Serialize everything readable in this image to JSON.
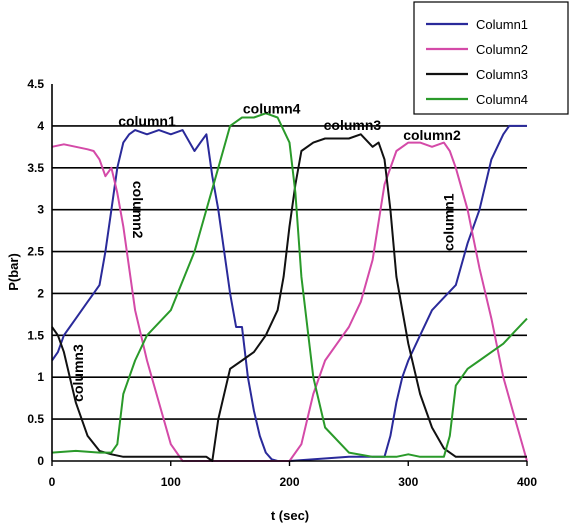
{
  "chart_data": {
    "type": "line",
    "title": "",
    "xlabel": "t (sec)",
    "ylabel": "P(bar)",
    "xlim": [
      0,
      400
    ],
    "ylim": [
      0,
      4.5
    ],
    "x_ticks": [
      "0",
      "100",
      "200",
      "300",
      "400"
    ],
    "y_ticks": [
      "0",
      "0.5",
      "1",
      "1.5",
      "2",
      "2.5",
      "3",
      "3.5",
      "4",
      "4.5"
    ],
    "grid": "horizontal",
    "legend_position": "top-right",
    "colors": {
      "Column1": "#2a2a9a",
      "Column2": "#d44aa8",
      "Column3": "#111111",
      "Column4": "#2a9a2a"
    },
    "series": [
      {
        "name": "Column1",
        "x": [
          0,
          5,
          10,
          15,
          20,
          25,
          30,
          35,
          40,
          45,
          50,
          55,
          60,
          65,
          70,
          80,
          90,
          100,
          110,
          120,
          125,
          130,
          135,
          140,
          145,
          150,
          155,
          160,
          165,
          170,
          175,
          180,
          185,
          190,
          200,
          250,
          270,
          280,
          285,
          290,
          295,
          300,
          310,
          320,
          330,
          340,
          350,
          360,
          370,
          380,
          385,
          390,
          400
        ],
        "y": [
          1.2,
          1.3,
          1.5,
          1.6,
          1.7,
          1.8,
          1.9,
          2.0,
          2.1,
          2.5,
          3.0,
          3.5,
          3.8,
          3.9,
          3.95,
          3.9,
          3.95,
          3.9,
          3.95,
          3.7,
          3.8,
          3.9,
          3.4,
          3.0,
          2.5,
          2.0,
          1.6,
          1.6,
          1.0,
          0.6,
          0.3,
          0.1,
          0.02,
          0.0,
          0.0,
          0.05,
          0.05,
          0.05,
          0.3,
          0.7,
          1.0,
          1.2,
          1.5,
          1.8,
          1.95,
          2.1,
          2.6,
          3.0,
          3.6,
          3.9,
          4.0,
          4.0,
          4.0
        ]
      },
      {
        "name": "Column2",
        "x": [
          0,
          10,
          20,
          30,
          35,
          40,
          45,
          50,
          55,
          60,
          65,
          70,
          80,
          90,
          100,
          110,
          200,
          210,
          215,
          220,
          230,
          240,
          250,
          260,
          270,
          280,
          290,
          300,
          310,
          320,
          330,
          335,
          340,
          350,
          360,
          370,
          380,
          390,
          400
        ],
        "y": [
          3.75,
          3.78,
          3.75,
          3.72,
          3.7,
          3.6,
          3.4,
          3.5,
          3.2,
          2.8,
          2.3,
          1.8,
          1.2,
          0.7,
          0.2,
          0.0,
          0.0,
          0.2,
          0.5,
          0.8,
          1.2,
          1.4,
          1.6,
          1.9,
          2.4,
          3.3,
          3.7,
          3.8,
          3.8,
          3.75,
          3.8,
          3.7,
          3.5,
          3.0,
          2.3,
          1.7,
          1.0,
          0.5,
          0.0
        ]
      },
      {
        "name": "Column3",
        "x": [
          0,
          5,
          10,
          15,
          20,
          30,
          40,
          50,
          60,
          100,
          120,
          125,
          130,
          135,
          140,
          150,
          160,
          170,
          180,
          190,
          195,
          200,
          205,
          210,
          220,
          230,
          240,
          250,
          260,
          270,
          275,
          280,
          285,
          290,
          295,
          300,
          310,
          320,
          330,
          340,
          350,
          360,
          400
        ],
        "y": [
          1.6,
          1.5,
          1.3,
          1.0,
          0.7,
          0.3,
          0.12,
          0.08,
          0.05,
          0.05,
          0.05,
          0.05,
          0.05,
          0.0,
          0.5,
          1.1,
          1.2,
          1.3,
          1.5,
          1.8,
          2.2,
          2.8,
          3.3,
          3.7,
          3.8,
          3.85,
          3.85,
          3.85,
          3.9,
          3.75,
          3.8,
          3.6,
          3.0,
          2.2,
          1.8,
          1.4,
          0.8,
          0.4,
          0.15,
          0.05,
          0.05,
          0.05,
          0.05
        ]
      },
      {
        "name": "Column4",
        "x": [
          0,
          20,
          40,
          50,
          55,
          60,
          70,
          80,
          100,
          120,
          140,
          150,
          155,
          160,
          170,
          180,
          190,
          200,
          205,
          210,
          220,
          230,
          250,
          270,
          290,
          300,
          310,
          320,
          330,
          335,
          340,
          350,
          360,
          370,
          380,
          390,
          400
        ],
        "y": [
          0.1,
          0.12,
          0.1,
          0.1,
          0.2,
          0.8,
          1.2,
          1.5,
          1.8,
          2.5,
          3.5,
          4.0,
          4.05,
          4.1,
          4.1,
          4.15,
          4.1,
          3.8,
          3.2,
          2.2,
          1.0,
          0.4,
          0.1,
          0.05,
          0.05,
          0.08,
          0.05,
          0.05,
          0.05,
          0.3,
          0.9,
          1.1,
          1.2,
          1.3,
          1.4,
          1.55,
          1.7
        ]
      }
    ],
    "annotations": [
      {
        "text": "column1",
        "x": 80,
        "y": 4.0,
        "rotation": 0
      },
      {
        "text": "column4",
        "x": 185,
        "y": 4.15,
        "rotation": 0
      },
      {
        "text": "column3",
        "x": 253,
        "y": 3.95,
        "rotation": 0
      },
      {
        "text": "column2",
        "x": 320,
        "y": 3.83,
        "rotation": 0
      },
      {
        "text": "column2",
        "x": 68,
        "y": 3.0,
        "rotation": 90
      },
      {
        "text": "column1",
        "x": 338,
        "y": 2.85,
        "rotation": -90
      },
      {
        "text": "column3",
        "x": 26,
        "y": 1.05,
        "rotation": -90
      }
    ]
  }
}
